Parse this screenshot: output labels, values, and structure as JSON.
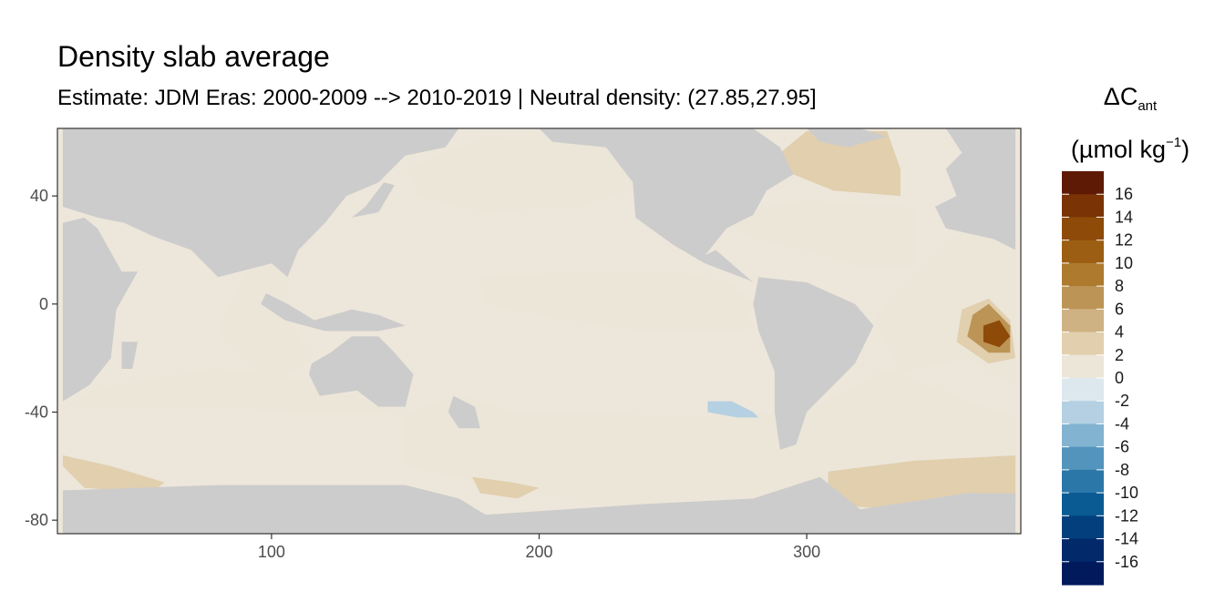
{
  "chart_data": {
    "type": "heatmap",
    "title": "Density slab average",
    "subtitle": "Estimate: JDM Eras: 2000-2009 --> 2010-2019 | Neutral density: (27.85,27.95]",
    "xlabel": "",
    "ylabel": "",
    "xlim": [
      20,
      380
    ],
    "ylim": [
      -85,
      65
    ],
    "x_ticks": [
      "100",
      "200",
      "300"
    ],
    "y_ticks": [
      "40",
      "0",
      "-40",
      "-80"
    ],
    "x_tick_values": [
      100,
      200,
      300
    ],
    "y_tick_values": [
      40,
      0,
      -40,
      -80
    ],
    "land_color": "#cccccc",
    "grid": false,
    "legend": {
      "position": "right",
      "title_main": "ΔC",
      "title_sub": "ant",
      "title_unit_open": "(µmol kg",
      "title_unit_sup": "−1",
      "title_unit_close": ")",
      "tick_labels": [
        "16",
        "14",
        "12",
        "10",
        "8",
        "6",
        "4",
        "2",
        "0",
        "-2",
        "-4",
        "-6",
        "-8",
        "-10",
        "-12",
        "-14",
        "-16"
      ],
      "tick_values": [
        16,
        14,
        12,
        10,
        8,
        6,
        4,
        2,
        0,
        -2,
        -4,
        -6,
        -8,
        -10,
        -12,
        -14,
        -16
      ],
      "bin_colors": [
        "#5e1a05",
        "#7a3304",
        "#8e4a08",
        "#9c5e12",
        "#ad7a2e",
        "#bc9455",
        "#cfb283",
        "#e1cfae",
        "#ece6d9",
        "#dde8ee",
        "#b4d0e2",
        "#82b3d0",
        "#5394bd",
        "#2a77a8",
        "#0a5b93",
        "#033f7d",
        "#022a6b",
        "#011a5c"
      ],
      "bin_ranges": [
        [
          16,
          18
        ],
        [
          14,
          16
        ],
        [
          12,
          14
        ],
        [
          10,
          12
        ],
        [
          8,
          10
        ],
        [
          6,
          8
        ],
        [
          4,
          6
        ],
        [
          2,
          4
        ],
        [
          0,
          2
        ],
        [
          -2,
          0
        ],
        [
          -4,
          -2
        ],
        [
          -6,
          -4
        ],
        [
          -8,
          -6
        ],
        [
          -10,
          -8
        ],
        [
          -12,
          -10
        ],
        [
          -14,
          -12
        ],
        [
          -16,
          -14
        ],
        [
          -18,
          -16
        ]
      ]
    },
    "regions": [
      {
        "value": 1,
        "points": [
          [
            22,
            -38
          ],
          [
            80,
            -38
          ],
          [
            110,
            -40
          ],
          [
            150,
            -40
          ],
          [
            150,
            -60
          ],
          [
            180,
            -66
          ],
          [
            230,
            -76
          ],
          [
            270,
            -72
          ],
          [
            320,
            -68
          ],
          [
            378,
            -58
          ],
          [
            378,
            -42
          ],
          [
            360,
            -36
          ],
          [
            330,
            -24
          ],
          [
            300,
            -40
          ],
          [
            250,
            -42
          ],
          [
            220,
            -40
          ],
          [
            190,
            -40
          ],
          [
            172,
            -34
          ],
          [
            150,
            -40
          ],
          [
            110,
            -28
          ],
          [
            80,
            -24
          ],
          [
            40,
            -30
          ]
        ]
      },
      {
        "value": 1,
        "points": [
          [
            150,
            50
          ],
          [
            180,
            62
          ],
          [
            210,
            60
          ],
          [
            235,
            58
          ],
          [
            240,
            44
          ],
          [
            215,
            36
          ],
          [
            180,
            34
          ],
          [
            155,
            40
          ]
        ]
      },
      {
        "value": 1,
        "points": [
          [
            178,
            10
          ],
          [
            220,
            12
          ],
          [
            250,
            12
          ],
          [
            272,
            8
          ],
          [
            280,
            0
          ],
          [
            276,
            -10
          ],
          [
            240,
            -10
          ],
          [
            210,
            -6
          ],
          [
            180,
            0
          ]
        ]
      },
      {
        "value": 1,
        "points": [
          [
            325,
            -5
          ],
          [
            340,
            10
          ],
          [
            360,
            30
          ],
          [
            378,
            34
          ],
          [
            378,
            -30
          ],
          [
            360,
            -20
          ],
          [
            335,
            -25
          ]
        ]
      },
      {
        "value": 1,
        "points": [
          [
            265,
            34
          ],
          [
            300,
            38
          ],
          [
            340,
            36
          ],
          [
            340,
            14
          ],
          [
            320,
            14
          ],
          [
            300,
            20
          ],
          [
            280,
            24
          ]
        ]
      },
      {
        "value": 1,
        "points": [
          [
            90,
            10
          ],
          [
            100,
            20
          ],
          [
            106,
            10
          ],
          [
            106,
            -5
          ],
          [
            115,
            -20
          ],
          [
            100,
            -30
          ],
          [
            80,
            -10
          ]
        ]
      },
      {
        "value": 3,
        "points": [
          [
            285,
            52
          ],
          [
            300,
            64
          ],
          [
            330,
            64
          ],
          [
            335,
            50
          ],
          [
            335,
            40
          ],
          [
            310,
            42
          ],
          [
            300,
            46
          ]
        ]
      },
      {
        "value": 3,
        "points": [
          [
            308,
            -62
          ],
          [
            340,
            -58
          ],
          [
            378,
            -56
          ],
          [
            378,
            -74
          ],
          [
            330,
            -76
          ],
          [
            308,
            -74
          ]
        ]
      },
      {
        "value": 3,
        "points": [
          [
            22,
            -56
          ],
          [
            40,
            -60
          ],
          [
            60,
            -66
          ],
          [
            55,
            -70
          ],
          [
            30,
            -68
          ],
          [
            22,
            -60
          ]
        ]
      },
      {
        "value": 3,
        "points": [
          [
            175,
            -64
          ],
          [
            190,
            -66
          ],
          [
            200,
            -68
          ],
          [
            192,
            -72
          ],
          [
            178,
            -70
          ]
        ]
      },
      {
        "value": 3,
        "points": [
          [
            358,
            -2
          ],
          [
            368,
            2
          ],
          [
            376,
            -6
          ],
          [
            378,
            -20
          ],
          [
            368,
            -22
          ],
          [
            356,
            -14
          ]
        ]
      },
      {
        "value": 6,
        "points": [
          [
            362,
            -4
          ],
          [
            368,
            0
          ],
          [
            376,
            -8
          ],
          [
            376,
            -18
          ],
          [
            368,
            -18
          ],
          [
            360,
            -12
          ]
        ]
      },
      {
        "value": 12,
        "points": [
          [
            366,
            -8
          ],
          [
            372,
            -6
          ],
          [
            376,
            -12
          ],
          [
            372,
            -16
          ],
          [
            366,
            -14
          ]
        ]
      },
      {
        "value": -3,
        "points": [
          [
            263,
            -36
          ],
          [
            272,
            -36
          ],
          [
            280,
            -40
          ],
          [
            282,
            -42
          ],
          [
            274,
            -42
          ],
          [
            263,
            -40
          ]
        ]
      }
    ],
    "land": [
      {
        "name": "africa",
        "points": [
          [
            22,
            30
          ],
          [
            30,
            32
          ],
          [
            35,
            28
          ],
          [
            44,
            12
          ],
          [
            50,
            12
          ],
          [
            42,
            -2
          ],
          [
            40,
            -20
          ],
          [
            32,
            -30
          ],
          [
            22,
            -36
          ]
        ]
      },
      {
        "name": "eurasia",
        "points": [
          [
            22,
            65
          ],
          [
            170,
            65
          ],
          [
            165,
            58
          ],
          [
            150,
            55
          ],
          [
            140,
            45
          ],
          [
            128,
            40
          ],
          [
            120,
            30
          ],
          [
            110,
            20
          ],
          [
            106,
            10
          ],
          [
            100,
            15
          ],
          [
            80,
            10
          ],
          [
            70,
            20
          ],
          [
            56,
            25
          ],
          [
            45,
            30
          ],
          [
            35,
            32
          ],
          [
            22,
            36
          ]
        ]
      },
      {
        "name": "north-america",
        "points": [
          [
            200,
            65
          ],
          [
            280,
            65
          ],
          [
            290,
            58
          ],
          [
            295,
            48
          ],
          [
            285,
            42
          ],
          [
            280,
            33
          ],
          [
            270,
            28
          ],
          [
            262,
            18
          ],
          [
            266,
            20
          ],
          [
            280,
            8
          ],
          [
            278,
            9
          ],
          [
            262,
            15
          ],
          [
            250,
            22
          ],
          [
            236,
            32
          ],
          [
            235,
            45
          ],
          [
            225,
            58
          ],
          [
            205,
            60
          ]
        ]
      },
      {
        "name": "greenland",
        "points": [
          [
            300,
            65
          ],
          [
            320,
            65
          ],
          [
            330,
            62
          ],
          [
            315,
            58
          ],
          [
            305,
            60
          ]
        ]
      },
      {
        "name": "europe-africa-east",
        "points": [
          [
            352,
            65
          ],
          [
            378,
            65
          ],
          [
            378,
            20
          ],
          [
            370,
            24
          ],
          [
            352,
            28
          ],
          [
            348,
            36
          ],
          [
            356,
            40
          ],
          [
            352,
            50
          ],
          [
            358,
            56
          ]
        ]
      },
      {
        "name": "south-america",
        "points": [
          [
            282,
            10
          ],
          [
            300,
            8
          ],
          [
            318,
            0
          ],
          [
            325,
            -8
          ],
          [
            318,
            -22
          ],
          [
            310,
            -30
          ],
          [
            300,
            -40
          ],
          [
            296,
            -52
          ],
          [
            290,
            -54
          ],
          [
            288,
            -40
          ],
          [
            288,
            -25
          ],
          [
            282,
            -10
          ],
          [
            280,
            0
          ]
        ]
      },
      {
        "name": "australia",
        "points": [
          [
            115,
            -22
          ],
          [
            122,
            -18
          ],
          [
            130,
            -12
          ],
          [
            140,
            -12
          ],
          [
            146,
            -18
          ],
          [
            153,
            -26
          ],
          [
            150,
            -38
          ],
          [
            140,
            -38
          ],
          [
            132,
            -32
          ],
          [
            118,
            -34
          ],
          [
            114,
            -26
          ]
        ]
      },
      {
        "name": "antarctica",
        "points": [
          [
            22,
            -69
          ],
          [
            80,
            -67
          ],
          [
            150,
            -67
          ],
          [
            170,
            -72
          ],
          [
            180,
            -78
          ],
          [
            240,
            -74
          ],
          [
            280,
            -72
          ],
          [
            305,
            -64
          ],
          [
            310,
            -68
          ],
          [
            320,
            -76
          ],
          [
            360,
            -70
          ],
          [
            378,
            -70
          ],
          [
            378,
            -85
          ],
          [
            22,
            -85
          ]
        ]
      },
      {
        "name": "new-zealand",
        "points": [
          [
            168,
            -34
          ],
          [
            176,
            -38
          ],
          [
            178,
            -46
          ],
          [
            170,
            -46
          ],
          [
            166,
            -40
          ]
        ]
      },
      {
        "name": "madagascar",
        "points": [
          [
            44,
            -14
          ],
          [
            50,
            -14
          ],
          [
            48,
            -24
          ],
          [
            44,
            -24
          ]
        ]
      },
      {
        "name": "indonesia",
        "points": [
          [
            98,
            4
          ],
          [
            106,
            0
          ],
          [
            116,
            -6
          ],
          [
            130,
            -2
          ],
          [
            140,
            -4
          ],
          [
            150,
            -8
          ],
          [
            140,
            -10
          ],
          [
            120,
            -10
          ],
          [
            105,
            -6
          ],
          [
            96,
            0
          ]
        ]
      },
      {
        "name": "japan",
        "points": [
          [
            130,
            32
          ],
          [
            140,
            34
          ],
          [
            146,
            44
          ],
          [
            142,
            45
          ],
          [
            135,
            36
          ]
        ]
      }
    ]
  }
}
